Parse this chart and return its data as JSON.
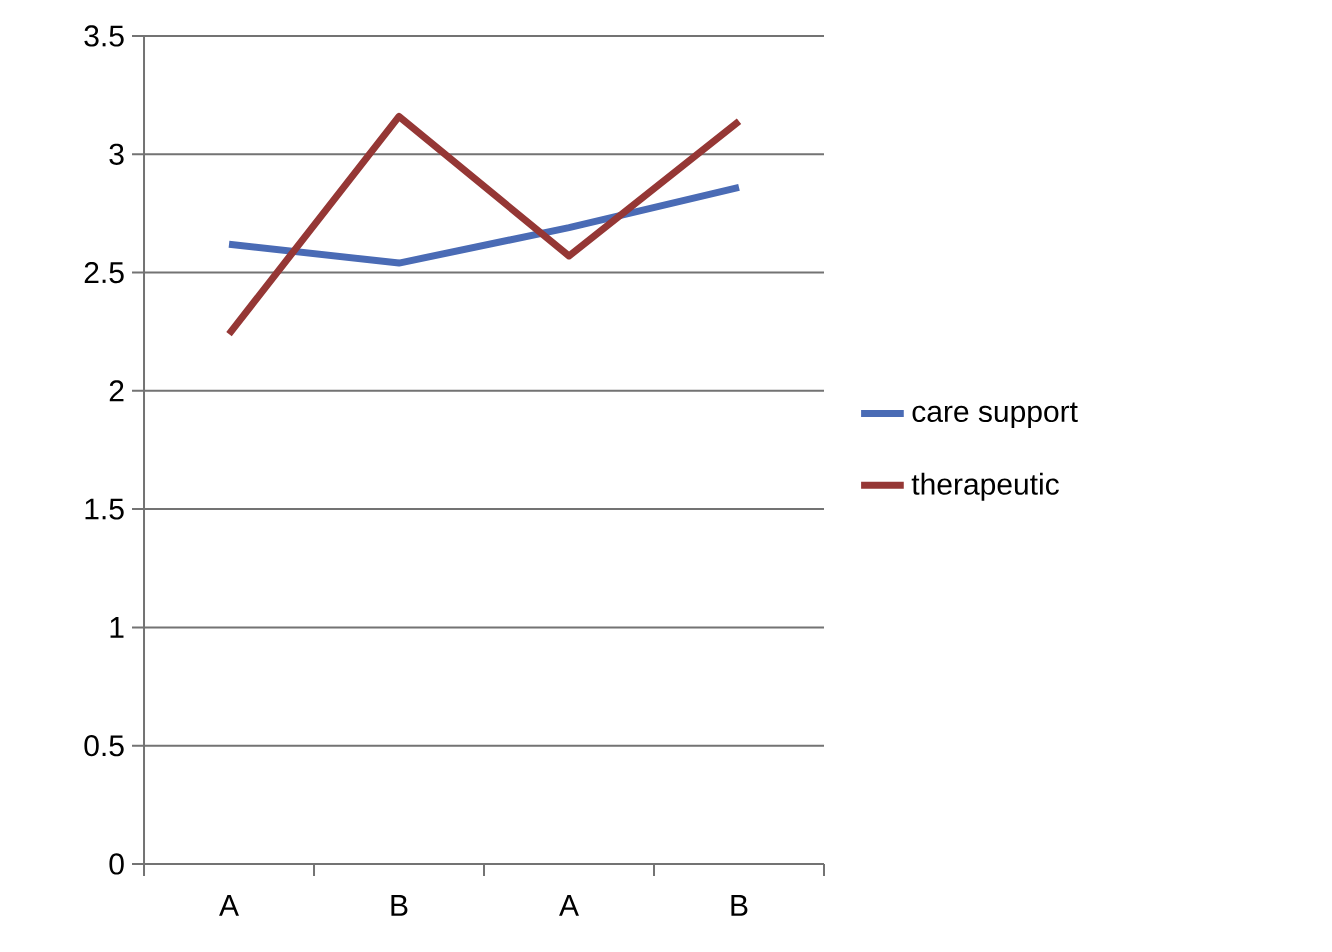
{
  "chart_data": {
    "type": "line",
    "categories": [
      "A",
      "B",
      "A",
      "B"
    ],
    "series": [
      {
        "name": "care support",
        "color": "#4a6bb5",
        "values": [
          2.62,
          2.54,
          2.69,
          2.86
        ]
      },
      {
        "name": "therapeutic",
        "color": "#953735",
        "values": [
          2.24,
          3.16,
          2.57,
          3.14
        ]
      }
    ],
    "ylim": [
      0,
      3.5
    ],
    "yticks": [
      0,
      0.5,
      1,
      1.5,
      2,
      2.5,
      3,
      3.5
    ],
    "grid": "y",
    "legend": "right",
    "marker": "none",
    "line_style": "solid"
  }
}
